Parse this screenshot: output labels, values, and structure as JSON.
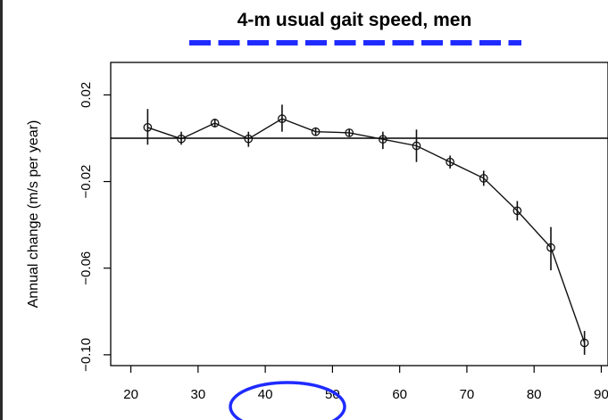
{
  "chart_data": {
    "type": "line",
    "title": "4-m usual gait speed, men",
    "xlabel": "",
    "ylabel": "Annual change (m/s per year)",
    "xlim": [
      17,
      91
    ],
    "ylim": [
      -0.105,
      0.035
    ],
    "x_ticks": [
      "20",
      "30",
      "40",
      "50",
      "60",
      "70",
      "80",
      "90"
    ],
    "y_ticks": [
      "0.02",
      "−0.02",
      "−0.06",
      "−0.10"
    ],
    "reference_line_y": 0,
    "grid": false,
    "title_underline_color": "#1f2bff",
    "highlight_ellipse": {
      "x_range": [
        40,
        50
      ],
      "color": "#1f2bff"
    },
    "series": [
      {
        "x": [
          22.5,
          27.5,
          32.5,
          37.5,
          42.5,
          47.5,
          52.5,
          57.5,
          62.5,
          67.5,
          72.5,
          77.5,
          82.5,
          87.5
        ],
        "values": [
          0.005,
          -0.0003,
          0.007,
          -0.0003,
          0.009,
          0.003,
          0.0025,
          -0.0005,
          -0.0035,
          -0.011,
          -0.0185,
          -0.0335,
          -0.0505,
          -0.0945
        ],
        "ci_low": [
          -0.003,
          -0.003,
          0.005,
          -0.004,
          0.003,
          0.001,
          0.001,
          -0.005,
          -0.011,
          -0.014,
          -0.022,
          -0.038,
          -0.061,
          -0.1
        ],
        "ci_high": [
          0.0135,
          0.003,
          0.009,
          0.003,
          0.0155,
          0.005,
          0.004,
          0.003,
          0.004,
          -0.008,
          -0.015,
          -0.029,
          -0.041,
          -0.089
        ]
      }
    ]
  }
}
